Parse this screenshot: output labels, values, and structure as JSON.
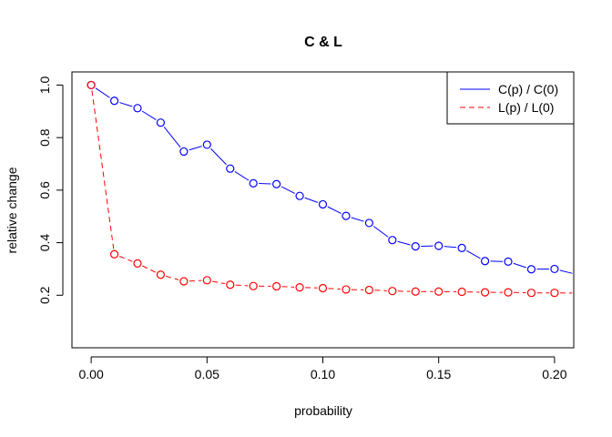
{
  "chart_data": {
    "type": "line",
    "title": "C & L",
    "xlabel": "probability",
    "ylabel": "relative change",
    "xlim": [
      -0.0083,
      0.2083
    ],
    "ylim": [
      0.0,
      1.05
    ],
    "x_ticks": [
      0.0,
      0.05,
      0.1,
      0.15,
      0.2
    ],
    "x_tick_labels": [
      "0.00",
      "0.05",
      "0.10",
      "0.15",
      "0.20"
    ],
    "y_ticks": [
      0.2,
      0.4,
      0.6,
      0.8,
      1.0
    ],
    "y_tick_labels": [
      "0.2",
      "0.4",
      "0.6",
      "0.8",
      "1.0"
    ],
    "grid": false,
    "legend_position": "top-right",
    "x": [
      0.0,
      0.01,
      0.02,
      0.03,
      0.04,
      0.05,
      0.06,
      0.07,
      0.08,
      0.09,
      0.1,
      0.11,
      0.12,
      0.13,
      0.14,
      0.15,
      0.16,
      0.17,
      0.18,
      0.19,
      0.2,
      0.21
    ],
    "series": [
      {
        "name": "C(p) / C(0)",
        "color": "#0000ff",
        "line_style": "solid",
        "values": [
          1.0,
          0.94,
          0.912,
          0.857,
          0.747,
          0.773,
          0.682,
          0.626,
          0.623,
          0.578,
          0.546,
          0.502,
          0.475,
          0.41,
          0.386,
          0.388,
          0.38,
          0.33,
          0.328,
          0.299,
          0.3,
          0.278
        ]
      },
      {
        "name": "L(p) / L(0)",
        "color": "#ff0000",
        "line_style": "dashed",
        "values": [
          1.0,
          0.356,
          0.321,
          0.278,
          0.253,
          0.257,
          0.24,
          0.235,
          0.234,
          0.23,
          0.227,
          0.222,
          0.22,
          0.216,
          0.214,
          0.214,
          0.213,
          0.211,
          0.211,
          0.209,
          0.209,
          0.208
        ]
      }
    ]
  }
}
